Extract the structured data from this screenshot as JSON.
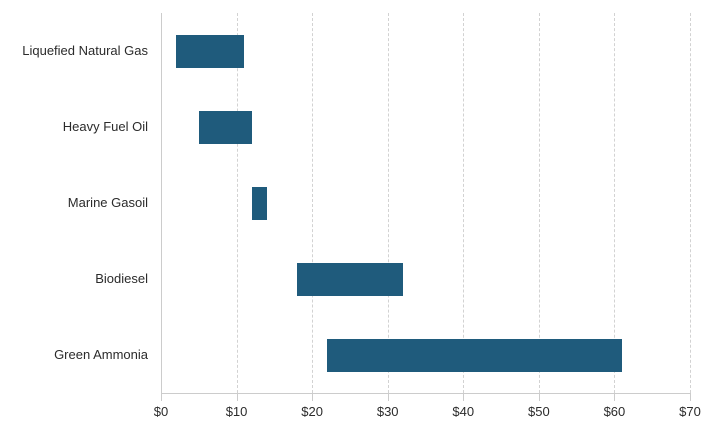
{
  "chart_data": {
    "type": "bar",
    "orientation": "horizontal",
    "variant": "floating-range-bars",
    "title": "",
    "xlabel": "",
    "ylabel": "",
    "categories": [
      "Liquefied Natural Gas",
      "Heavy Fuel Oil",
      "Marine Gasoil",
      "Biodiesel",
      "Green Ammonia"
    ],
    "series": [
      {
        "name": "cost-range",
        "ranges": [
          {
            "category": "Liquefied Natural Gas",
            "from": 2,
            "to": 11
          },
          {
            "category": "Heavy Fuel Oil",
            "from": 5,
            "to": 12
          },
          {
            "category": "Marine Gasoil",
            "from": 12,
            "to": 14
          },
          {
            "category": "Biodiesel",
            "from": 18,
            "to": 32
          },
          {
            "category": "Green Ammonia",
            "from": 22,
            "to": 61
          }
        ]
      }
    ],
    "xlim": [
      0,
      70
    ],
    "x_ticks": [
      {
        "value": 0,
        "label": "$0"
      },
      {
        "value": 10,
        "label": "$10"
      },
      {
        "value": 20,
        "label": "$20"
      },
      {
        "value": 30,
        "label": "$30"
      },
      {
        "value": 40,
        "label": "$40"
      },
      {
        "value": 50,
        "label": "$50"
      },
      {
        "value": 60,
        "label": "$60"
      },
      {
        "value": 70,
        "label": "$70"
      }
    ],
    "grid": "vertical-dashed",
    "legend": "none",
    "colors": {
      "bar": "#1f5b7c",
      "gridline": "#d2d2d2",
      "axis": "#cccccc",
      "text": "#2b2b2b"
    }
  }
}
